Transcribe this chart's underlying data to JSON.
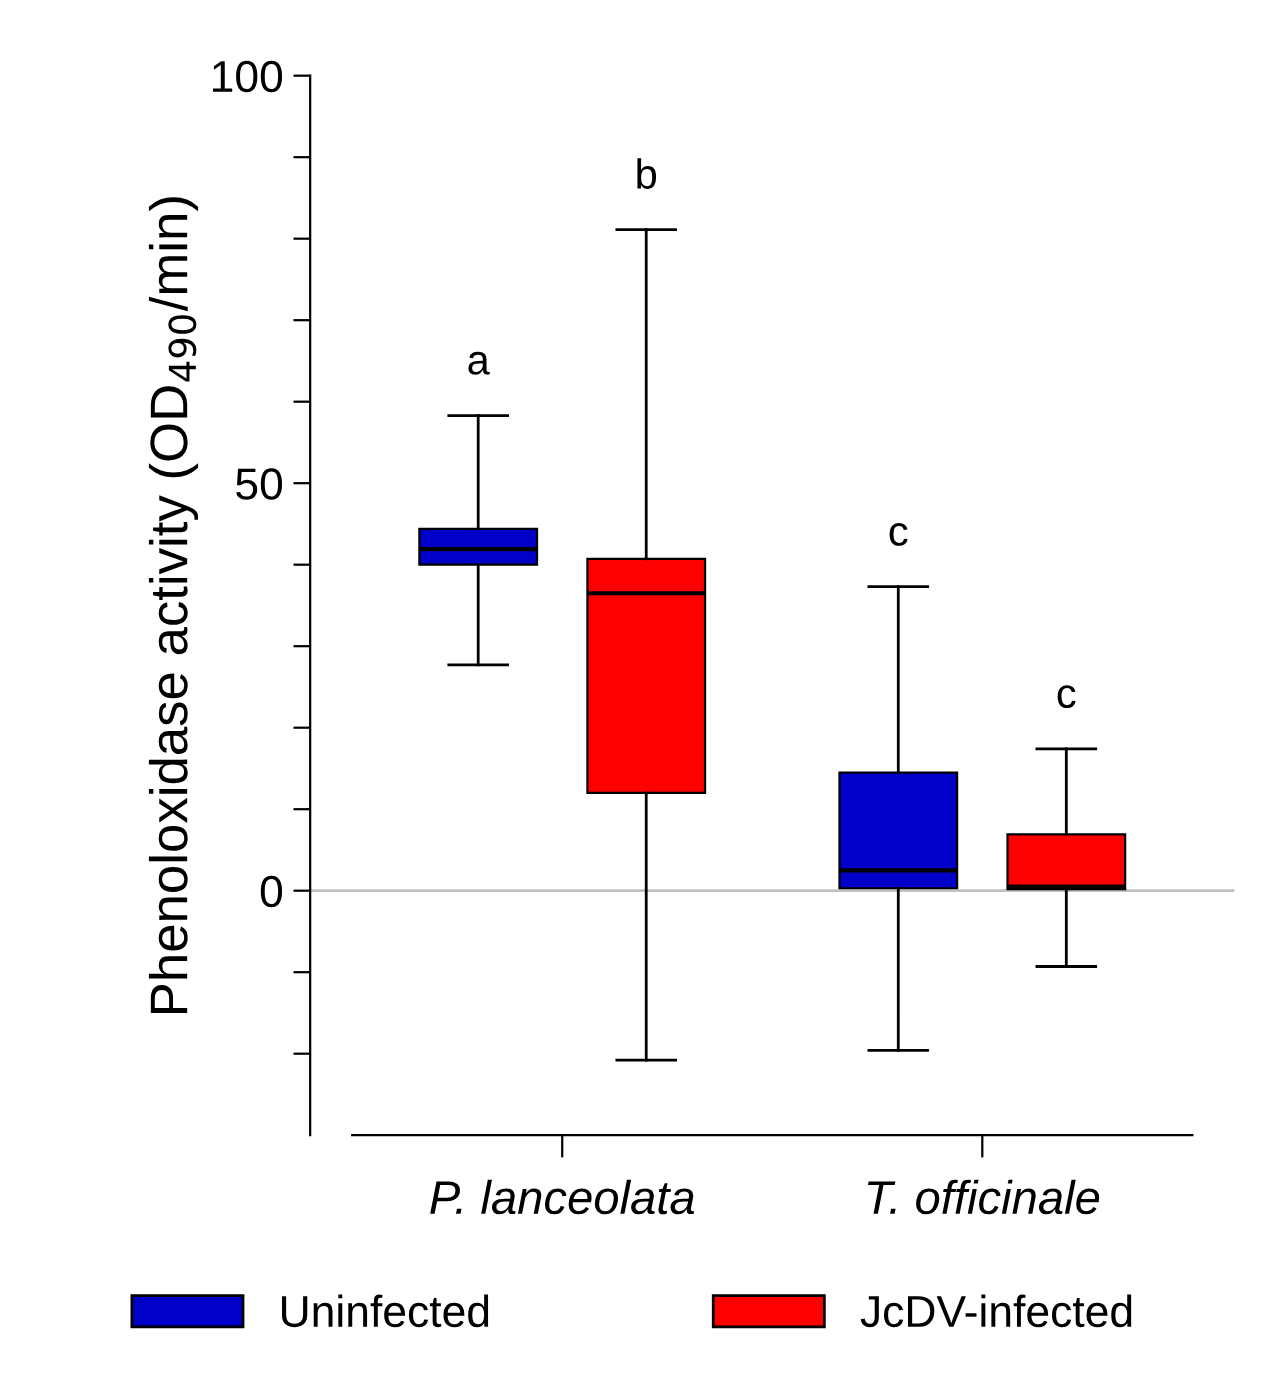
{
  "chart_data": {
    "type": "box",
    "ylabel": "Phenoloxidase activity (OD$_{490}$/min)",
    "categories": [
      "P. lanceolata",
      "T. officinale"
    ],
    "series": [
      {
        "name": "Uninfected",
        "color": "#0000c8",
        "boxes": [
          {
            "low": 27.7,
            "q1": 40,
            "median": 41.9,
            "q3": 44.4,
            "high": 58.3
          },
          {
            "low": -19.6,
            "q1": 0.3,
            "median": 2.5,
            "q3": 14.5,
            "high": 37.3
          }
        ]
      },
      {
        "name": "JcDV-infected",
        "color": "#ff0000",
        "boxes": [
          {
            "low": -20.8,
            "q1": 12,
            "median": 36.5,
            "q3": 40.7,
            "high": 81.1
          },
          {
            "low": -9.3,
            "q1": 0.2,
            "median": 0.5,
            "q3": 6.9,
            "high": 17.4
          }
        ]
      }
    ],
    "ylim": [
      -30,
      100
    ],
    "yticks": [
      {
        "value": -20,
        "label": null
      },
      {
        "value": -10,
        "label": null
      },
      0,
      {
        "value": 10,
        "label": null
      },
      {
        "value": 20,
        "label": null
      },
      {
        "value": 30,
        "label": null
      },
      {
        "value": 40,
        "label": null
      },
      50,
      {
        "value": 60,
        "label": null
      },
      {
        "value": 70,
        "label": null
      },
      {
        "value": 80,
        "label": null
      },
      {
        "value": 90,
        "label": null
      },
      100
    ],
    "ref_lines": [
      {
        "axis": "y",
        "value": 0,
        "color": "#c0c0c0"
      }
    ],
    "annotations": [
      "a",
      "b",
      "c",
      "c"
    ],
    "legend": "bottom",
    "grid": false
  }
}
